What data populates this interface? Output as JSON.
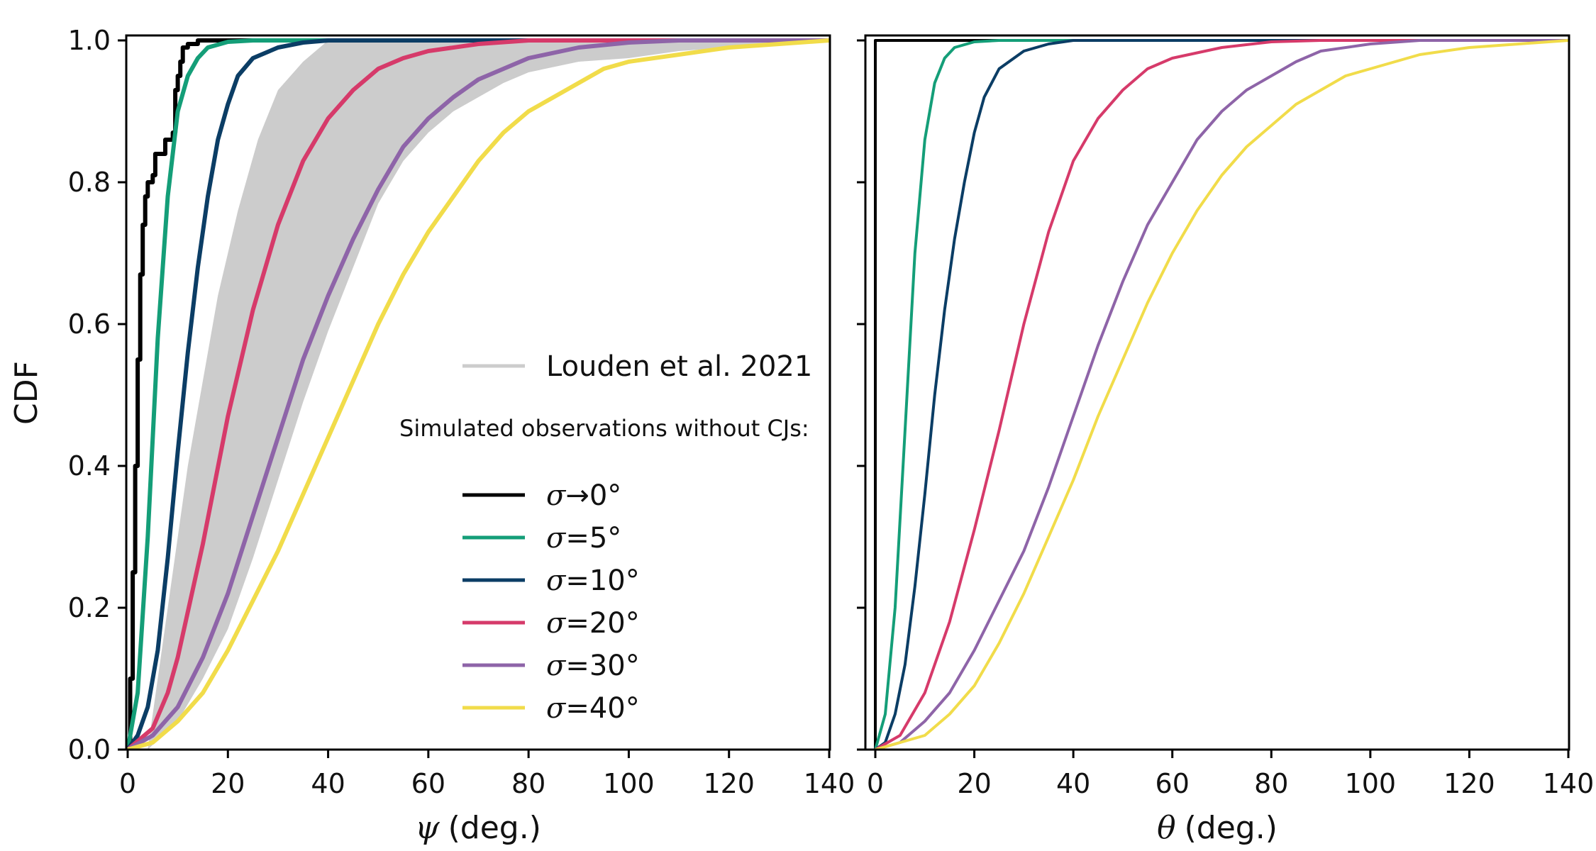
{
  "chart_data": [
    {
      "type": "line",
      "panel": "left",
      "ylabel": "CDF",
      "xlabel_symbol": "ψ",
      "xlabel_unit": "(deg.)",
      "xlim": [
        0,
        140
      ],
      "ylim": [
        0,
        1
      ],
      "xticks": [
        0,
        20,
        40,
        60,
        80,
        100,
        120,
        140
      ],
      "yticks": [
        0.0,
        0.2,
        0.4,
        0.6,
        0.8,
        1.0
      ],
      "ytick_labels": [
        "0.0",
        "0.2",
        "0.4",
        "0.6",
        "0.8",
        "1.0"
      ],
      "grid": false,
      "legend_placement": "center-right",
      "band": {
        "name": "Louden et al. 2021",
        "color": "#cccccc",
        "lower": [
          [
            4,
            0
          ],
          [
            10,
            0.04
          ],
          [
            15,
            0.1
          ],
          [
            20,
            0.17
          ],
          [
            25,
            0.27
          ],
          [
            30,
            0.38
          ],
          [
            35,
            0.49
          ],
          [
            40,
            0.59
          ],
          [
            45,
            0.68
          ],
          [
            50,
            0.77
          ],
          [
            55,
            0.83
          ],
          [
            60,
            0.87
          ],
          [
            65,
            0.9
          ],
          [
            70,
            0.92
          ],
          [
            75,
            0.94
          ],
          [
            80,
            0.955
          ],
          [
            90,
            0.97
          ],
          [
            100,
            0.975
          ],
          [
            110,
            0.985
          ],
          [
            120,
            0.99
          ],
          [
            140,
            1.0
          ]
        ],
        "upper": [
          [
            4,
            0
          ],
          [
            6,
            0.1
          ],
          [
            8,
            0.2
          ],
          [
            10,
            0.3
          ],
          [
            12,
            0.4
          ],
          [
            15,
            0.52
          ],
          [
            18,
            0.64
          ],
          [
            22,
            0.76
          ],
          [
            26,
            0.86
          ],
          [
            30,
            0.93
          ],
          [
            35,
            0.97
          ],
          [
            40,
            1.0
          ],
          [
            140,
            1.0
          ]
        ]
      },
      "legend_subtitle": "Simulated observations without CJs:",
      "series": [
        {
          "label_symbol": "σ",
          "label_rest": "→0°",
          "color": "#000000",
          "step": true,
          "points": [
            [
              0,
              0
            ],
            [
              0.5,
              0.1
            ],
            [
              1,
              0.25
            ],
            [
              1.5,
              0.4
            ],
            [
              2,
              0.55
            ],
            [
              2.5,
              0.67
            ],
            [
              3,
              0.74
            ],
            [
              3.5,
              0.78
            ],
            [
              4,
              0.8
            ],
            [
              5,
              0.81
            ],
            [
              5.5,
              0.84
            ],
            [
              7,
              0.84
            ],
            [
              7.5,
              0.86
            ],
            [
              9,
              0.87
            ],
            [
              9.5,
              0.93
            ],
            [
              10,
              0.95
            ],
            [
              10.5,
              0.97
            ],
            [
              11,
              0.99
            ],
            [
              12,
              0.995
            ],
            [
              14,
              1.0
            ],
            [
              140,
              1.0
            ]
          ]
        },
        {
          "label_symbol": "σ",
          "label_rest": "=5°",
          "color": "#149e78",
          "points": [
            [
              0,
              0
            ],
            [
              2,
              0.08
            ],
            [
              4,
              0.3
            ],
            [
              6,
              0.58
            ],
            [
              8,
              0.78
            ],
            [
              10,
              0.9
            ],
            [
              12,
              0.95
            ],
            [
              14,
              0.975
            ],
            [
              16,
              0.99
            ],
            [
              20,
              0.998
            ],
            [
              25,
              1.0
            ],
            [
              140,
              1.0
            ]
          ]
        },
        {
          "label_symbol": "σ",
          "label_rest": "=10°",
          "color": "#0b3d65",
          "points": [
            [
              0,
              0
            ],
            [
              2,
              0.02
            ],
            [
              4,
              0.06
            ],
            [
              6,
              0.14
            ],
            [
              8,
              0.27
            ],
            [
              10,
              0.42
            ],
            [
              12,
              0.56
            ],
            [
              14,
              0.68
            ],
            [
              16,
              0.78
            ],
            [
              18,
              0.86
            ],
            [
              20,
              0.91
            ],
            [
              22,
              0.95
            ],
            [
              25,
              0.975
            ],
            [
              30,
              0.99
            ],
            [
              35,
              0.997
            ],
            [
              40,
              1.0
            ],
            [
              140,
              1.0
            ]
          ]
        },
        {
          "label_symbol": "σ",
          "label_rest": "=20°",
          "color": "#d63a6a",
          "points": [
            [
              0,
              0
            ],
            [
              5,
              0.03
            ],
            [
              8,
              0.08
            ],
            [
              10,
              0.13
            ],
            [
              15,
              0.29
            ],
            [
              20,
              0.47
            ],
            [
              25,
              0.62
            ],
            [
              30,
              0.74
            ],
            [
              35,
              0.83
            ],
            [
              40,
              0.89
            ],
            [
              45,
              0.93
            ],
            [
              50,
              0.96
            ],
            [
              55,
              0.975
            ],
            [
              60,
              0.985
            ],
            [
              70,
              0.995
            ],
            [
              80,
              1.0
            ],
            [
              140,
              1.0
            ]
          ]
        },
        {
          "label_symbol": "σ",
          "label_rest": "=30°",
          "color": "#8e64a8",
          "points": [
            [
              0,
              0
            ],
            [
              5,
              0.02
            ],
            [
              10,
              0.06
            ],
            [
              15,
              0.13
            ],
            [
              20,
              0.22
            ],
            [
              25,
              0.33
            ],
            [
              30,
              0.44
            ],
            [
              35,
              0.55
            ],
            [
              40,
              0.64
            ],
            [
              45,
              0.72
            ],
            [
              50,
              0.79
            ],
            [
              55,
              0.85
            ],
            [
              60,
              0.89
            ],
            [
              65,
              0.92
            ],
            [
              70,
              0.945
            ],
            [
              75,
              0.96
            ],
            [
              80,
              0.975
            ],
            [
              90,
              0.99
            ],
            [
              100,
              0.997
            ],
            [
              110,
              1.0
            ],
            [
              140,
              1.0
            ]
          ]
        },
        {
          "label_symbol": "σ",
          "label_rest": "=40°",
          "color": "#f1dc4a",
          "points": [
            [
              0,
              0
            ],
            [
              5,
              0.01
            ],
            [
              10,
              0.04
            ],
            [
              15,
              0.08
            ],
            [
              20,
              0.14
            ],
            [
              25,
              0.21
            ],
            [
              30,
              0.28
            ],
            [
              35,
              0.36
            ],
            [
              40,
              0.44
            ],
            [
              45,
              0.52
            ],
            [
              50,
              0.6
            ],
            [
              55,
              0.67
            ],
            [
              60,
              0.73
            ],
            [
              65,
              0.78
            ],
            [
              70,
              0.83
            ],
            [
              75,
              0.87
            ],
            [
              80,
              0.9
            ],
            [
              85,
              0.92
            ],
            [
              90,
              0.94
            ],
            [
              95,
              0.96
            ],
            [
              100,
              0.97
            ],
            [
              110,
              0.98
            ],
            [
              120,
              0.99
            ],
            [
              130,
              0.995
            ],
            [
              140,
              1.0
            ]
          ]
        }
      ]
    },
    {
      "type": "line",
      "panel": "right",
      "ylabel": "",
      "xlabel_symbol": "θ",
      "xlabel_unit": "(deg.)",
      "xlim": [
        0,
        140
      ],
      "ylim": [
        0,
        1
      ],
      "xticks": [
        0,
        20,
        40,
        60,
        80,
        100,
        120,
        140
      ],
      "yticks": [
        0.0,
        0.2,
        0.4,
        0.6,
        0.8,
        1.0
      ],
      "grid": false,
      "series": [
        {
          "name": "σ→0°",
          "color": "#000000",
          "step": true,
          "points": [
            [
              0,
              0
            ],
            [
              0,
              1.0
            ],
            [
              140,
              1.0
            ]
          ]
        },
        {
          "name": "σ=5°",
          "color": "#149e78",
          "points": [
            [
              0,
              0
            ],
            [
              2,
              0.05
            ],
            [
              4,
              0.2
            ],
            [
              6,
              0.45
            ],
            [
              8,
              0.7
            ],
            [
              10,
              0.86
            ],
            [
              12,
              0.94
            ],
            [
              14,
              0.975
            ],
            [
              16,
              0.99
            ],
            [
              20,
              0.998
            ],
            [
              25,
              1.0
            ],
            [
              140,
              1.0
            ]
          ]
        },
        {
          "name": "σ=10°",
          "color": "#0b3d65",
          "points": [
            [
              0,
              0
            ],
            [
              2,
              0.01
            ],
            [
              4,
              0.05
            ],
            [
              6,
              0.12
            ],
            [
              8,
              0.23
            ],
            [
              10,
              0.36
            ],
            [
              12,
              0.5
            ],
            [
              14,
              0.62
            ],
            [
              16,
              0.72
            ],
            [
              18,
              0.8
            ],
            [
              20,
              0.87
            ],
            [
              22,
              0.92
            ],
            [
              25,
              0.96
            ],
            [
              30,
              0.985
            ],
            [
              35,
              0.995
            ],
            [
              40,
              1.0
            ],
            [
              140,
              1.0
            ]
          ]
        },
        {
          "name": "σ=20°",
          "color": "#d63a6a",
          "points": [
            [
              0,
              0
            ],
            [
              5,
              0.02
            ],
            [
              10,
              0.08
            ],
            [
              15,
              0.18
            ],
            [
              20,
              0.31
            ],
            [
              25,
              0.45
            ],
            [
              30,
              0.6
            ],
            [
              35,
              0.73
            ],
            [
              40,
              0.83
            ],
            [
              45,
              0.89
            ],
            [
              50,
              0.93
            ],
            [
              55,
              0.96
            ],
            [
              60,
              0.975
            ],
            [
              70,
              0.99
            ],
            [
              80,
              0.998
            ],
            [
              90,
              1.0
            ],
            [
              140,
              1.0
            ]
          ]
        },
        {
          "name": "σ=30°",
          "color": "#8e64a8",
          "points": [
            [
              0,
              0
            ],
            [
              5,
              0.01
            ],
            [
              10,
              0.04
            ],
            [
              15,
              0.08
            ],
            [
              20,
              0.14
            ],
            [
              25,
              0.21
            ],
            [
              30,
              0.28
            ],
            [
              35,
              0.37
            ],
            [
              40,
              0.47
            ],
            [
              45,
              0.57
            ],
            [
              50,
              0.66
            ],
            [
              55,
              0.74
            ],
            [
              60,
              0.8
            ],
            [
              65,
              0.86
            ],
            [
              70,
              0.9
            ],
            [
              75,
              0.93
            ],
            [
              80,
              0.95
            ],
            [
              85,
              0.97
            ],
            [
              90,
              0.985
            ],
            [
              100,
              0.995
            ],
            [
              110,
              1.0
            ],
            [
              140,
              1.0
            ]
          ]
        },
        {
          "name": "σ=40°",
          "color": "#f1dc4a",
          "points": [
            [
              0,
              0
            ],
            [
              5,
              0.01
            ],
            [
              10,
              0.02
            ],
            [
              15,
              0.05
            ],
            [
              20,
              0.09
            ],
            [
              25,
              0.15
            ],
            [
              30,
              0.22
            ],
            [
              35,
              0.3
            ],
            [
              40,
              0.38
            ],
            [
              45,
              0.47
            ],
            [
              50,
              0.55
            ],
            [
              55,
              0.63
            ],
            [
              60,
              0.7
            ],
            [
              65,
              0.76
            ],
            [
              70,
              0.81
            ],
            [
              75,
              0.85
            ],
            [
              80,
              0.88
            ],
            [
              85,
              0.91
            ],
            [
              90,
              0.93
            ],
            [
              95,
              0.95
            ],
            [
              100,
              0.96
            ],
            [
              110,
              0.98
            ],
            [
              120,
              0.99
            ],
            [
              130,
              0.995
            ],
            [
              140,
              1.0
            ]
          ]
        }
      ]
    }
  ]
}
